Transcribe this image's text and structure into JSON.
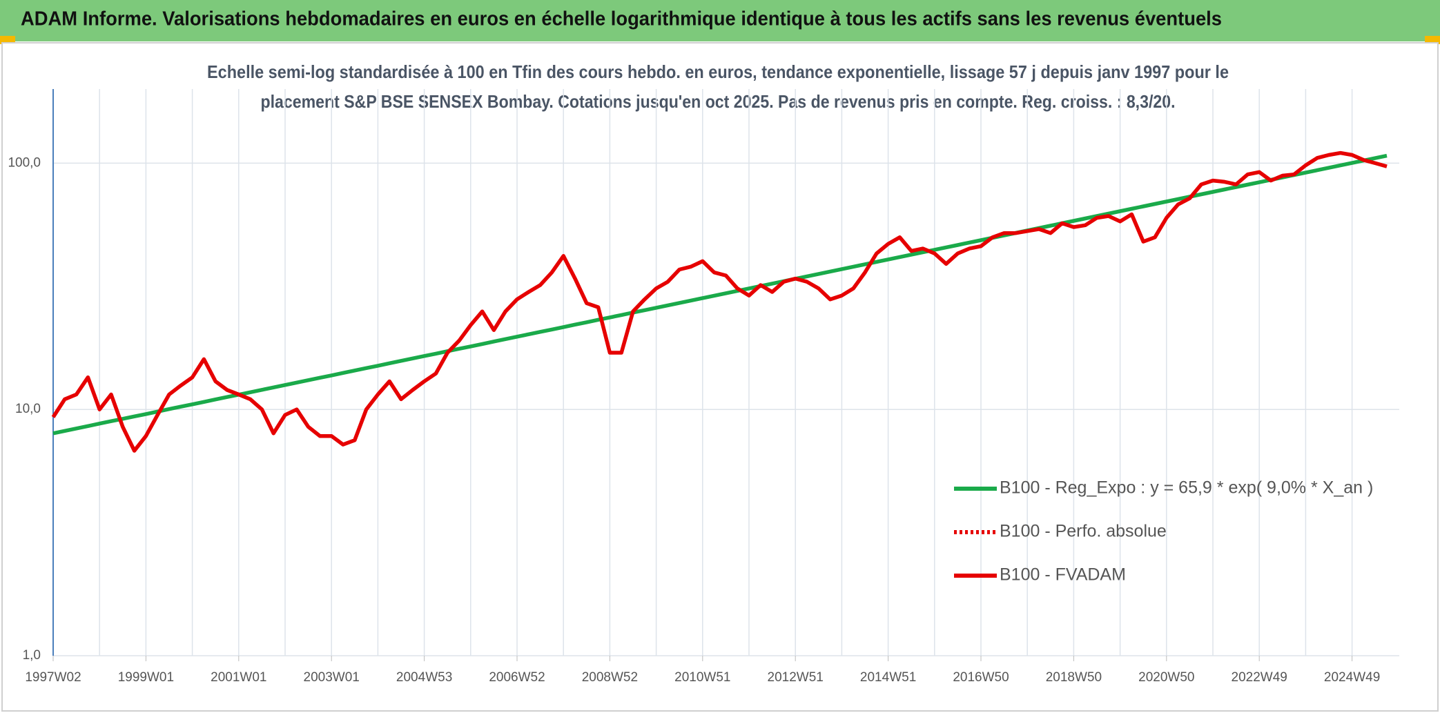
{
  "chart_data": {
    "type": "line",
    "title": "ADAM Informe. Valorisations hebdomadaires en euros en échelle logarithmique identique à tous les actifs sans les revenus éventuels",
    "subtitle": [
      "Echelle semi-log standardisée à 100 en Tfin des cours hebdo. en euros, tendance exponentielle, lissage 57 j depuis janv 1997 pour le",
      "placement S&P BSE SENSEX Bombay. Cotations jusqu'en oct 2025. Pas de revenus pris en compte. Reg. croiss. : 8,3/20."
    ],
    "log_scale": true,
    "grid": true,
    "legend": "right",
    "ylim": [
      1,
      200
    ],
    "yticks": [
      {
        "value": 1,
        "label": "1,0"
      },
      {
        "value": 10,
        "label": "10,0"
      },
      {
        "value": 100,
        "label": "100,0"
      }
    ],
    "categories": [
      "1997W02",
      null,
      null,
      null,
      null,
      null,
      null,
      null,
      "1999W01",
      null,
      null,
      null,
      null,
      null,
      null,
      null,
      "2001W01",
      null,
      null,
      null,
      null,
      null,
      null,
      null,
      "2003W01",
      null,
      null,
      null,
      null,
      null,
      null,
      null,
      "2004W53",
      null,
      null,
      null,
      null,
      null,
      null,
      null,
      "2006W52",
      null,
      null,
      null,
      null,
      null,
      null,
      null,
      "2008W52",
      null,
      null,
      null,
      null,
      null,
      null,
      null,
      "2010W51",
      null,
      null,
      null,
      null,
      null,
      null,
      null,
      "2012W51",
      null,
      null,
      null,
      null,
      null,
      null,
      null,
      "2014W51",
      null,
      null,
      null,
      null,
      null,
      null,
      null,
      "2016W50",
      null,
      null,
      null,
      null,
      null,
      null,
      null,
      "2018W50",
      null,
      null,
      null,
      null,
      null,
      null,
      null,
      "2020W50",
      null,
      null,
      null,
      null,
      null,
      null,
      null,
      "2022W49",
      null,
      null,
      null,
      null,
      null,
      null,
      null,
      "2024W49",
      null,
      null,
      null
    ],
    "series": [
      {
        "name": "B100 - Reg_Expo : y = 65,9 * exp( 9,0% *  X_an )",
        "color": "#1aaa4a",
        "style": "solid",
        "values": [
          8.0,
          8.18,
          8.37,
          8.56,
          8.76,
          8.96,
          9.16,
          9.37,
          9.58,
          9.8,
          10.03,
          10.26,
          10.49,
          10.73,
          10.98,
          11.23,
          11.48,
          11.74,
          12.01,
          12.29,
          12.57,
          12.85,
          13.15,
          13.45,
          13.75,
          14.07,
          14.39,
          14.72,
          15.05,
          15.4,
          15.75,
          16.11,
          16.48,
          16.85,
          17.24,
          17.63,
          18.03,
          18.44,
          18.87,
          19.3,
          19.74,
          20.19,
          20.65,
          21.12,
          21.6,
          22.1,
          22.6,
          23.12,
          23.64,
          24.18,
          24.74,
          25.3,
          25.88,
          26.47,
          27.07,
          27.69,
          28.32,
          28.97,
          29.63,
          30.31,
          31.0,
          31.71,
          32.43,
          33.17,
          33.93,
          34.7,
          35.49,
          36.3,
          37.13,
          37.98,
          38.85,
          39.73,
          40.64,
          41.57,
          42.52,
          43.49,
          44.48,
          45.5,
          46.53,
          47.6,
          48.68,
          49.79,
          50.93,
          52.09,
          53.28,
          54.5,
          55.74,
          57.01,
          58.31,
          59.64,
          61.0,
          62.4,
          63.82,
          65.28,
          66.77,
          68.29,
          69.85,
          71.44,
          73.07,
          74.74,
          76.44,
          78.19,
          79.97,
          81.8,
          83.66,
          85.57,
          87.53,
          89.52,
          91.57,
          93.66,
          95.79,
          97.98,
          100.21,
          102.5,
          104.84,
          107.23
        ]
      },
      {
        "name": "B100 - Perfo. absolue",
        "color": "#e60000",
        "style": "dotted"
      },
      {
        "name": "B100 - FVADAM",
        "color": "#e60000",
        "style": "solid",
        "values": [
          9.3,
          11,
          11.5,
          13.5,
          10,
          11.5,
          8.5,
          6.8,
          7.8,
          9.5,
          11.5,
          12.5,
          13.5,
          16,
          13,
          12,
          11.5,
          11,
          10,
          8,
          9.5,
          10,
          8.5,
          7.8,
          7.8,
          7.2,
          7.5,
          10,
          11.5,
          13,
          11,
          12,
          13,
          14,
          17,
          19,
          22,
          25,
          21,
          25,
          28,
          30,
          32,
          36,
          42,
          34,
          27,
          26,
          17,
          17,
          25,
          28,
          31,
          33,
          37,
          38,
          40,
          36,
          35,
          31,
          29,
          32,
          30,
          33,
          34,
          33,
          31,
          28,
          29,
          31,
          36,
          43,
          47,
          50,
          44,
          45,
          43,
          39,
          43,
          45,
          46,
          50,
          52,
          52,
          53,
          54,
          52,
          57,
          55,
          56,
          60,
          61,
          58,
          62,
          48,
          50,
          60,
          68,
          72,
          82,
          85,
          84,
          82,
          90,
          92,
          85,
          89,
          90,
          98,
          105,
          108,
          110,
          108,
          103,
          100,
          97
        ]
      }
    ]
  }
}
